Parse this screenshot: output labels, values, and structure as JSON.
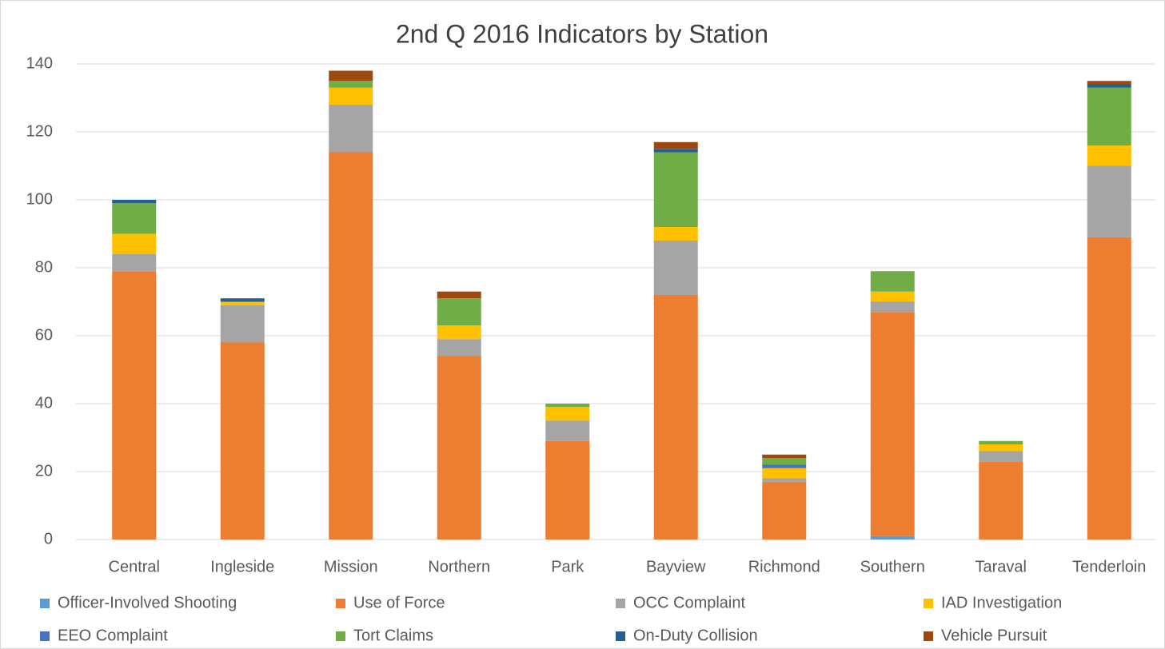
{
  "chart_data": {
    "type": "stacked_bar",
    "title": "2nd Q 2016 Indicators by Station",
    "categories": [
      "Central",
      "Ingleside",
      "Mission",
      "Northern",
      "Park",
      "Bayview",
      "Richmond",
      "Southern",
      "Taraval",
      "Tenderloin"
    ],
    "series": [
      {
        "name": "Officer-Involved Shooting",
        "color": "#5b9bd5",
        "values": [
          0,
          0,
          0,
          0,
          0,
          0,
          0,
          1,
          0,
          0
        ]
      },
      {
        "name": "Use of Force",
        "color": "#ed7d31",
        "values": [
          79,
          58,
          114,
          54,
          29,
          72,
          17,
          66,
          23,
          89
        ]
      },
      {
        "name": "OCC Complaint",
        "color": "#a5a5a5",
        "values": [
          5,
          11,
          14,
          5,
          6,
          16,
          1,
          3,
          3,
          21
        ]
      },
      {
        "name": "IAD Investigation",
        "color": "#ffc000",
        "values": [
          6,
          1,
          5,
          4,
          4,
          4,
          3,
          3,
          2,
          6
        ]
      },
      {
        "name": "EEO Complaint",
        "color": "#4472c4",
        "values": [
          0,
          0,
          0,
          0,
          0,
          0,
          1,
          0,
          0,
          0
        ]
      },
      {
        "name": "Tort Claims",
        "color": "#70ad47",
        "values": [
          9,
          0,
          2,
          8,
          1,
          22,
          2,
          6,
          1,
          17
        ]
      },
      {
        "name": "On-Duty Collision",
        "color": "#255e91",
        "values": [
          1,
          1,
          0,
          0,
          0,
          1,
          0,
          0,
          0,
          1
        ]
      },
      {
        "name": "Vehicle Pursuit",
        "color": "#9e480e",
        "values": [
          0,
          0,
          3,
          2,
          0,
          2,
          1,
          0,
          0,
          1
        ]
      }
    ],
    "ylim": [
      0,
      140
    ],
    "yticks": [
      0,
      20,
      40,
      60,
      80,
      100,
      120,
      140
    ],
    "grid": true,
    "legend": "bottom"
  }
}
